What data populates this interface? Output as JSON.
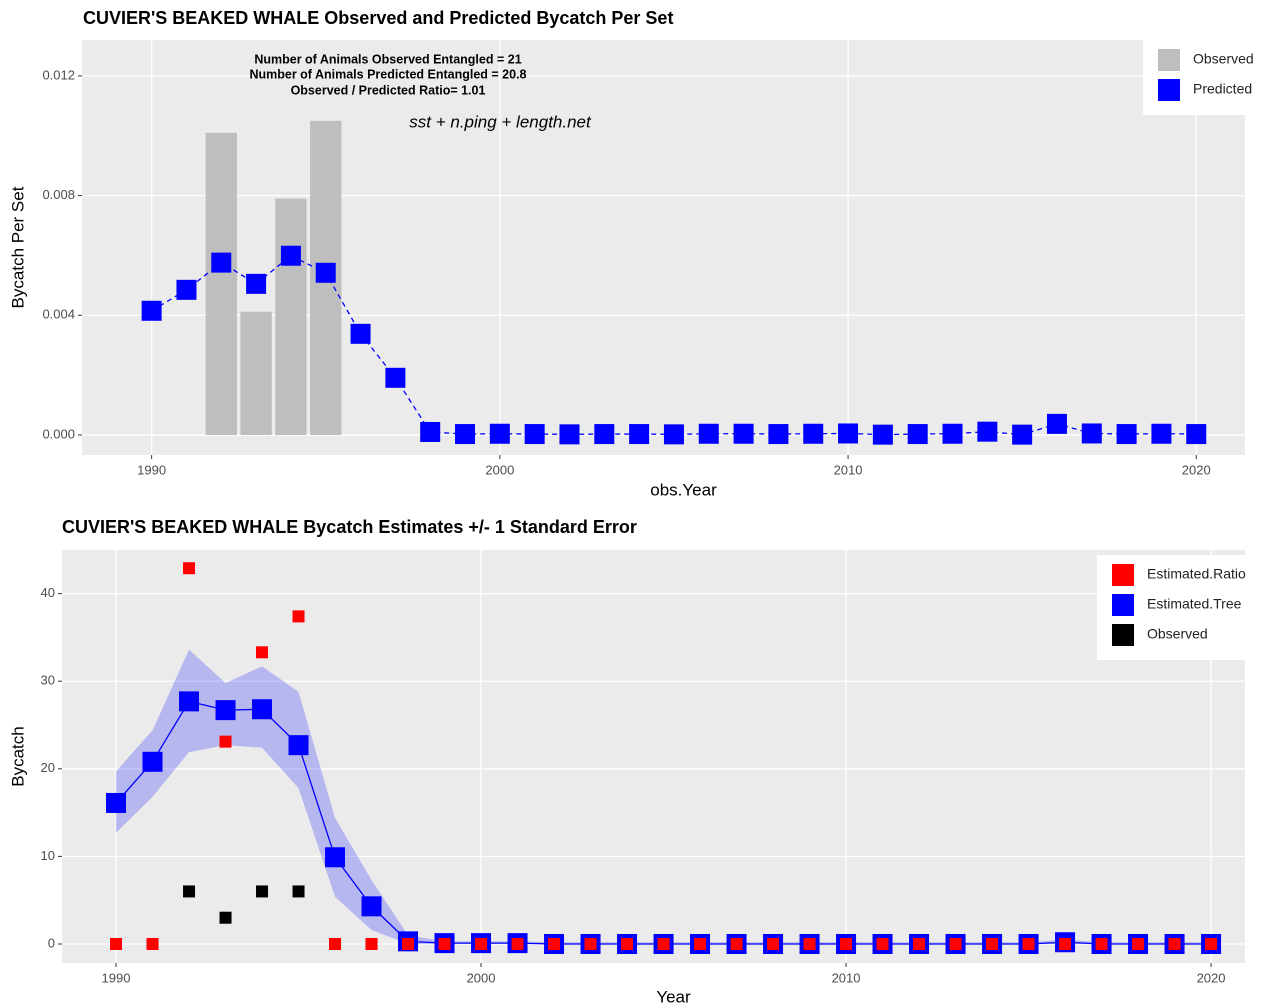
{
  "chart_data": [
    {
      "type": "combo",
      "title": "CUVIER'S BEAKED WHALE Observed and Predicted Bycatch Per Set",
      "annotations": [
        "Number of Animals Observed Entangled = 21",
        "Number of Animals Predicted Entangled = 20.8",
        "Observed / Predicted Ratio= 1.01"
      ],
      "model_formula": "sst + n.ping + length.net",
      "x_label": "obs.Year",
      "y_label": "Bycatch Per Set",
      "x": [
        1990,
        1991,
        1992,
        1993,
        1994,
        1995,
        1996,
        1997,
        1998,
        1999,
        2000,
        2001,
        2002,
        2003,
        2004,
        2005,
        2006,
        2007,
        2008,
        2009,
        2010,
        2011,
        2012,
        2013,
        2014,
        2015,
        2016,
        2017,
        2018,
        2019,
        2020
      ],
      "series": [
        {
          "name": "Observed",
          "color": "#bebebe",
          "mark": "bar",
          "values": [
            0,
            0,
            0.0101,
            0.00412,
            0.0079,
            0.0105,
            0,
            0,
            0,
            0,
            0,
            0,
            0,
            0,
            0,
            0,
            0,
            0,
            0,
            0,
            0,
            0,
            0,
            0,
            0,
            0,
            0,
            0,
            0,
            0,
            0
          ]
        },
        {
          "name": "Predicted",
          "color": "#0000ff",
          "mark": "large",
          "line": "dashed",
          "values": [
            0.00415,
            0.00485,
            0.00576,
            0.00505,
            0.00599,
            0.00542,
            0.00338,
            0.00191,
            0.0001,
            3e-05,
            4e-05,
            3e-05,
            2e-05,
            3e-05,
            3e-05,
            2e-05,
            4e-05,
            4e-05,
            3e-05,
            4e-05,
            5e-05,
            1e-05,
            3e-05,
            4e-05,
            0.00011,
            1e-05,
            0.00037,
            5e-05,
            3e-05,
            4e-05,
            3e-05
          ]
        }
      ],
      "xlim": [
        1988,
        2021.4
      ],
      "ylim": [
        -0.00067,
        0.0132
      ],
      "xticks": [
        1990,
        2000,
        2010,
        2020
      ],
      "yticks": [
        {
          "value": 0,
          "label": "0.000"
        },
        {
          "value": 0.004,
          "label": "0.004"
        },
        {
          "value": 0.008,
          "label": "0.008"
        },
        {
          "value": 0.012,
          "label": "0.012"
        }
      ],
      "grid": true,
      "legend": "top-right"
    },
    {
      "type": "combo",
      "title": "CUVIER'S BEAKED WHALE Bycatch Estimates +/- 1 Standard Error",
      "x_label": "Year",
      "y_label": "Bycatch",
      "x": [
        1990,
        1991,
        1992,
        1993,
        1994,
        1995,
        1996,
        1997,
        1998,
        1999,
        2000,
        2001,
        2002,
        2003,
        2004,
        2005,
        2006,
        2007,
        2008,
        2009,
        2010,
        2011,
        2012,
        2013,
        2014,
        2015,
        2016,
        2017,
        2018,
        2019,
        2020
      ],
      "series": [
        {
          "name": "Estimated.Ratio",
          "color": "#ff0000",
          "mark": "small",
          "values": [
            0,
            0,
            42.9,
            23.1,
            33.3,
            37.4,
            0,
            0,
            0,
            0,
            0,
            0,
            0,
            0,
            0,
            0,
            0,
            0,
            0,
            0,
            0,
            0,
            0,
            0,
            0,
            0,
            0,
            0,
            0,
            0,
            0
          ]
        },
        {
          "name": "Estimated.Tree",
          "color": "#0000ff",
          "mark": "large",
          "line": "solid",
          "values": [
            16.1,
            20.8,
            27.7,
            26.7,
            26.8,
            22.7,
            9.9,
            4.3,
            0.3,
            0.1,
            0.1,
            0.1,
            0,
            0,
            0,
            0,
            0,
            0,
            0,
            0,
            0,
            0,
            0,
            0,
            0,
            0,
            0.2,
            0,
            0,
            0,
            0
          ],
          "upper": [
            19.7,
            24.4,
            33.6,
            29.8,
            31.7,
            28.8,
            14.4,
            7.3,
            1.0,
            0.3,
            0.3,
            0.3,
            0.2,
            0.2,
            0.2,
            0.2,
            0.2,
            0.2,
            0.2,
            0.2,
            0.2,
            0.2,
            0.2,
            0.2,
            0.2,
            0.2,
            0.5,
            0.2,
            0.2,
            0.2,
            0.2
          ],
          "lower": [
            12.7,
            16.8,
            21.9,
            22.7,
            22.4,
            17.8,
            5.4,
            1.6,
            0,
            0,
            0,
            0,
            0,
            0,
            0,
            0,
            0,
            0,
            0,
            0,
            0,
            0,
            0,
            0,
            0,
            0,
            0,
            0,
            0,
            0,
            0
          ]
        },
        {
          "name": "Observed",
          "color": "#000000",
          "mark": "small",
          "values": [
            0,
            0,
            6,
            3,
            6,
            6,
            0,
            0,
            0,
            0,
            0,
            0,
            0,
            0,
            0,
            0,
            0,
            0,
            0,
            0,
            0,
            0,
            0,
            0,
            0,
            0,
            0,
            0,
            0,
            0,
            0
          ]
        }
      ],
      "xlim": [
        1988.52,
        2020.93
      ],
      "ylim": [
        -2.17,
        44.98
      ],
      "xticks": [
        1990,
        2000,
        2010,
        2020
      ],
      "yticks": [
        0,
        10,
        20,
        30,
        40
      ],
      "grid": true,
      "legend": "top-right"
    }
  ]
}
